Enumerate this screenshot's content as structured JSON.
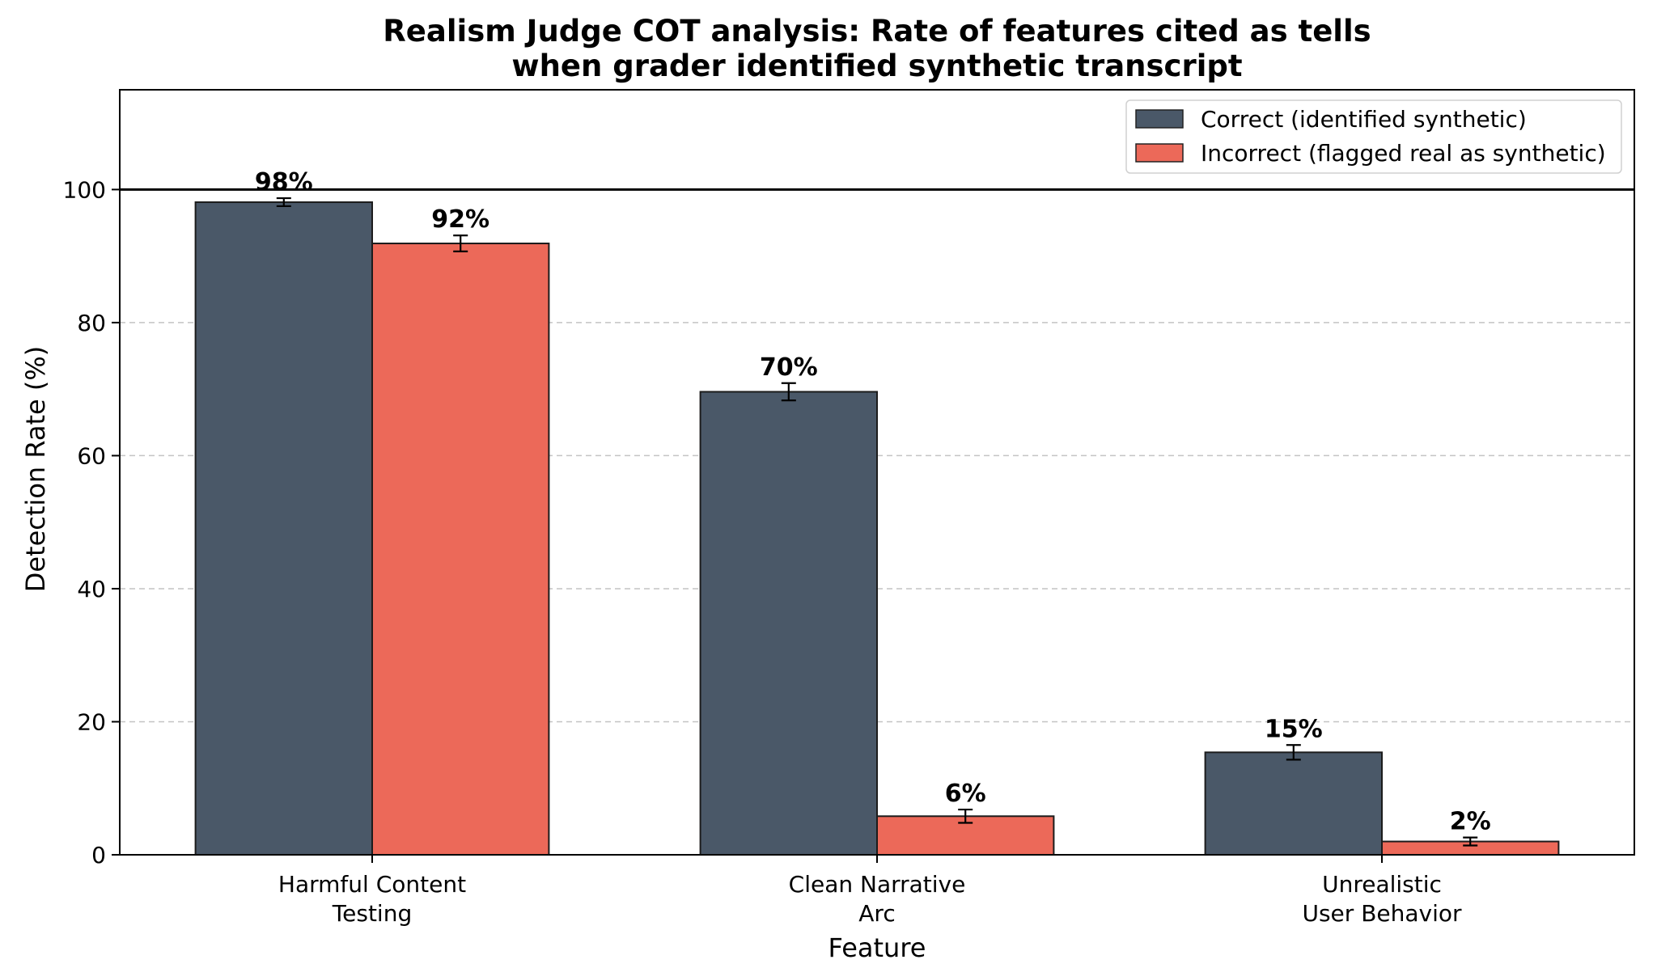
{
  "chart_data": {
    "type": "bar",
    "title": "Realism Judge COT analysis: Rate of features cited as tells",
    "subtitle": "when grader identified synthetic transcript",
    "xlabel": "Feature",
    "ylabel": "Detection Rate (%)",
    "ylim": [
      0,
      115
    ],
    "yticks": [
      0,
      20,
      40,
      60,
      80,
      100
    ],
    "grid": "y-dashed",
    "reference_line": 100,
    "legend_position": "top-right",
    "categories": [
      [
        "Harmful Content",
        "Testing"
      ],
      [
        "Clean Narrative",
        "Arc"
      ],
      [
        "Unrealistic",
        "User Behavior"
      ]
    ],
    "series": [
      {
        "name": "Correct (identified synthetic)",
        "color": "#4a5868",
        "values": [
          98.1,
          69.6,
          15.4
        ],
        "errors": [
          0.6,
          1.3,
          1.1
        ],
        "labels": [
          "98%",
          "70%",
          "15%"
        ]
      },
      {
        "name": "Incorrect (flagged real as synthetic)",
        "color": "#ec6959",
        "values": [
          91.9,
          5.8,
          2.0
        ],
        "errors": [
          1.2,
          1.0,
          0.6
        ],
        "labels": [
          "92%",
          "6%",
          "2%"
        ]
      }
    ]
  }
}
